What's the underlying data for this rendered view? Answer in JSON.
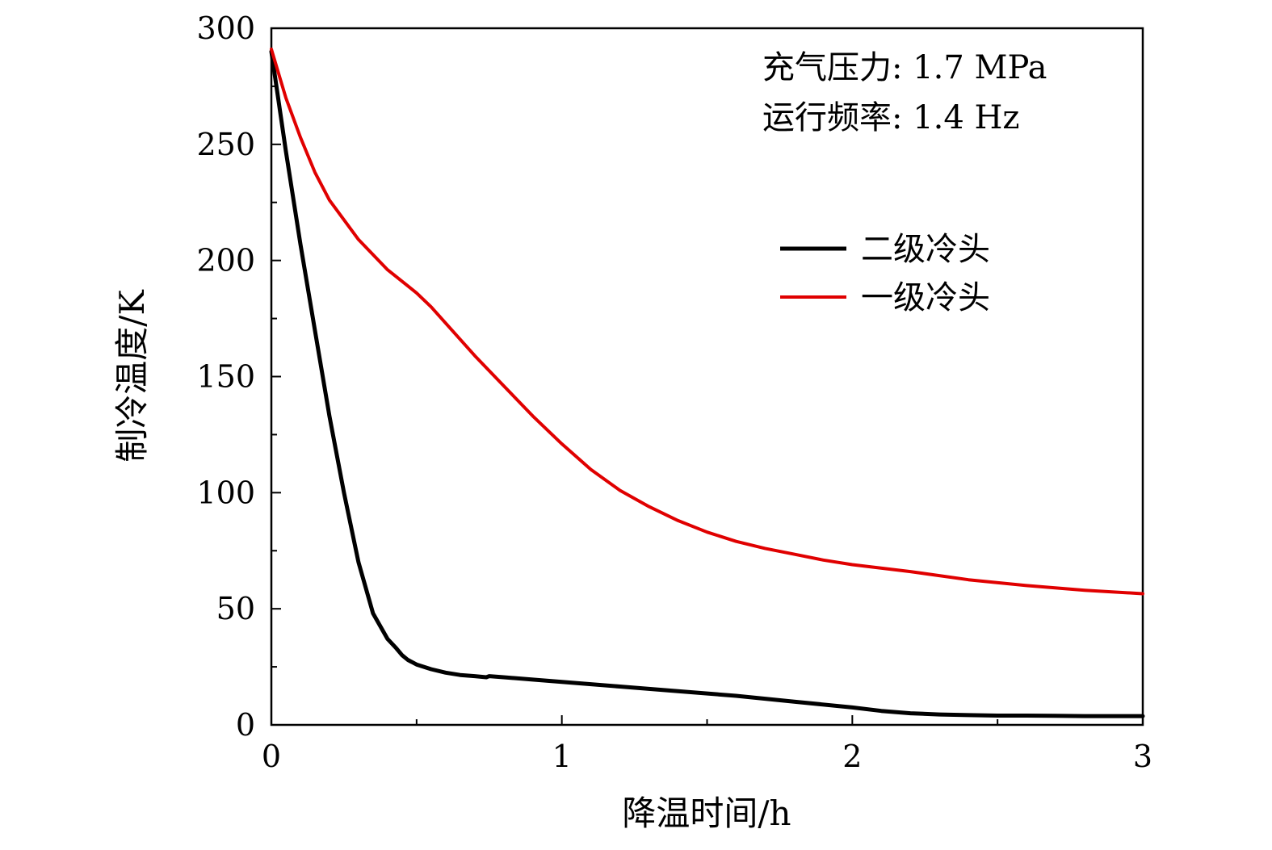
{
  "chart_data": {
    "type": "line",
    "xlabel": "降温时间/h",
    "ylabel": "制冷温度/K",
    "xlim": [
      0,
      3
    ],
    "ylim": [
      0,
      300
    ],
    "xticks": [
      0,
      1,
      2,
      3
    ],
    "xtick_labels": [
      "0",
      "1",
      "2",
      "3"
    ],
    "yticks": [
      0,
      50,
      100,
      150,
      200,
      250,
      300
    ],
    "ytick_labels": [
      "0",
      "50",
      "100",
      "150",
      "200",
      "250",
      "300"
    ],
    "grid": false,
    "legend_position": "upper-right",
    "annotations": [
      "充气压力: 1.7 MPa",
      "运行频率: 1.4 Hz"
    ],
    "series": [
      {
        "name": "二级冷头",
        "color": "#000000",
        "x": [
          0,
          0.05,
          0.1,
          0.15,
          0.2,
          0.25,
          0.3,
          0.35,
          0.4,
          0.43,
          0.45,
          0.47,
          0.5,
          0.55,
          0.6,
          0.65,
          0.7,
          0.74,
          0.75,
          0.8,
          0.9,
          1.0,
          1.2,
          1.4,
          1.6,
          1.8,
          2.0,
          2.1,
          2.2,
          2.3,
          2.4,
          2.5,
          2.6,
          2.7,
          2.8,
          2.9,
          3.0
        ],
        "y": [
          290,
          247,
          207,
          170,
          133,
          100,
          70,
          48,
          37,
          33,
          30,
          28,
          26,
          24,
          22.5,
          21.5,
          21,
          20.5,
          21,
          20.5,
          19.5,
          18.5,
          16.5,
          14.5,
          12.5,
          10,
          7.5,
          6,
          5,
          4.5,
          4.2,
          4,
          4,
          3.9,
          3.8,
          3.8,
          3.8
        ]
      },
      {
        "name": "一级冷头",
        "color": "#e00000",
        "x": [
          0,
          0.05,
          0.1,
          0.15,
          0.2,
          0.3,
          0.4,
          0.5,
          0.55,
          0.6,
          0.7,
          0.8,
          0.9,
          1.0,
          1.1,
          1.2,
          1.3,
          1.4,
          1.5,
          1.6,
          1.7,
          1.8,
          1.9,
          2.0,
          2.2,
          2.4,
          2.6,
          2.8,
          3.0
        ],
        "y": [
          291,
          270,
          253,
          238,
          226,
          209,
          196,
          186,
          180,
          173,
          159,
          146,
          133,
          121,
          110,
          101,
          94,
          88,
          83,
          79,
          76,
          73.5,
          71,
          69,
          66,
          62.5,
          60,
          58,
          56.5
        ]
      }
    ]
  }
}
